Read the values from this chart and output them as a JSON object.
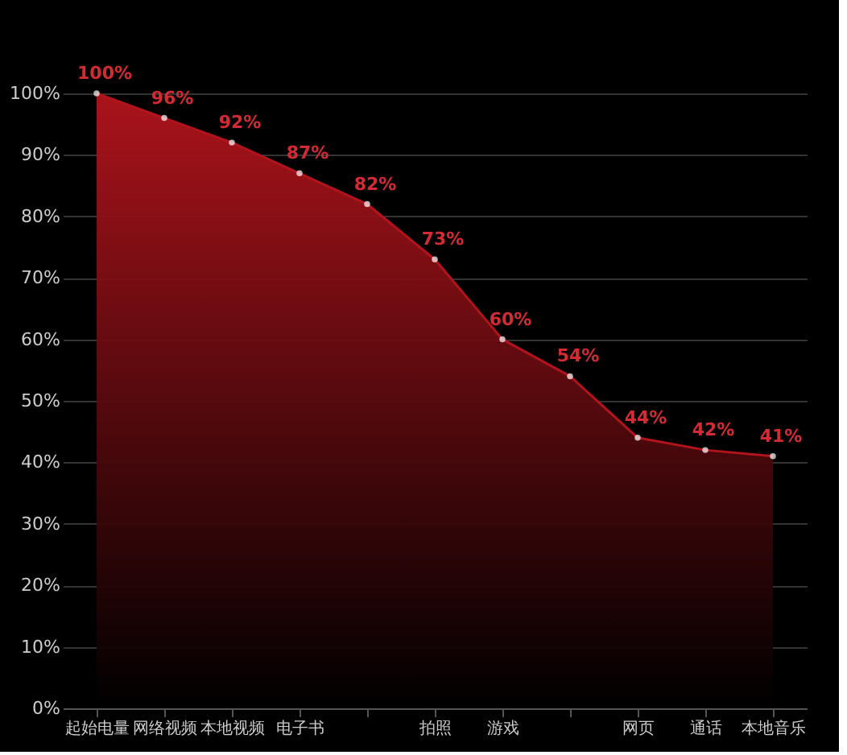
{
  "chart_data": {
    "type": "area",
    "categories": [
      "起始电量",
      "网络视频",
      "本地视频",
      "电子书",
      null,
      "拍照",
      "游戏",
      null,
      "网页",
      "通话",
      "本地音乐"
    ],
    "series": [
      {
        "color": "#b3141c",
        "values": [
          100,
          96,
          92,
          87,
          82,
          73,
          60,
          54,
          44,
          42,
          41
        ],
        "value_labels": [
          "100%",
          "96%",
          "92%",
          "87%",
          "82%",
          "73%",
          "60%",
          "54%",
          "44%",
          "42%",
          "41%"
        ]
      }
    ],
    "ylim": [
      0,
      100
    ],
    "yticks": [
      {
        "value": 0,
        "label": "0%"
      },
      {
        "value": 10,
        "label": "10%"
      },
      {
        "value": 20,
        "label": "20%"
      },
      {
        "value": 30,
        "label": "30%"
      },
      {
        "value": 40,
        "label": "40%"
      },
      {
        "value": 50,
        "label": "50%"
      },
      {
        "value": 60,
        "label": "60%"
      },
      {
        "value": 70,
        "label": "70%"
      },
      {
        "value": 80,
        "label": "80%"
      },
      {
        "value": 90,
        "label": "90%"
      },
      {
        "value": 100,
        "label": "100%"
      }
    ],
    "grid": "y",
    "marker": "circle",
    "line_style": "solid"
  }
}
